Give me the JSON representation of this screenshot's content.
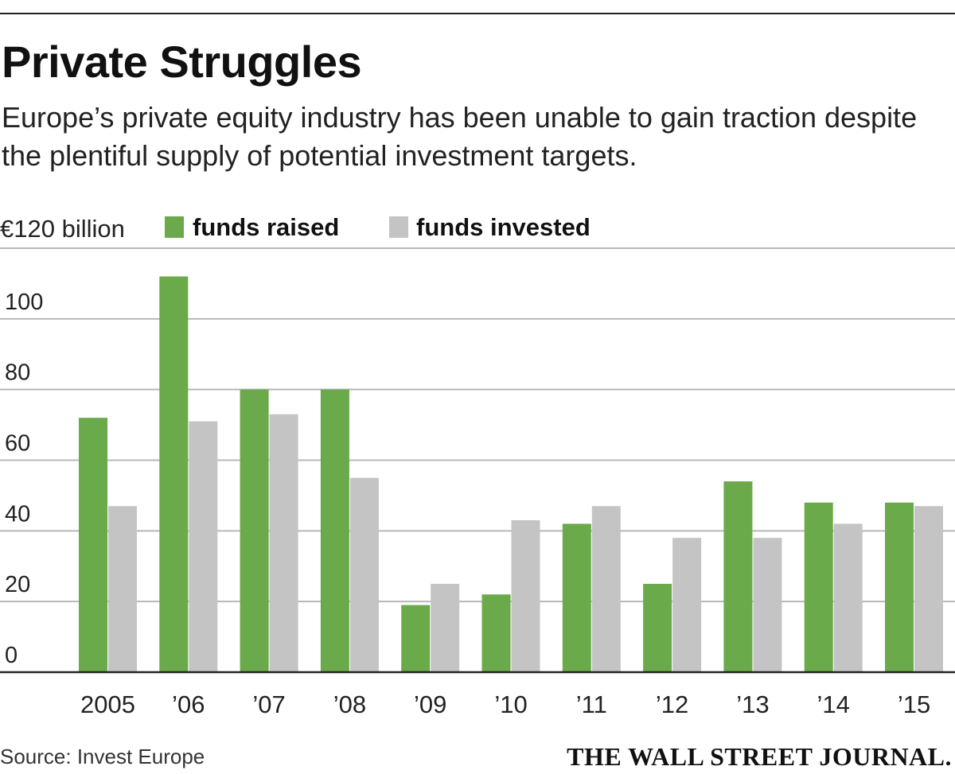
{
  "header": {
    "title": "Private Struggles",
    "subtitle": "Europe’s private equity industry has been unable to gain traction despite the plentiful supply of potential investment targets."
  },
  "chart_data": {
    "type": "bar",
    "title": "Private Struggles",
    "ylabel": "€120 billion",
    "xlabel": "",
    "ylim": [
      0,
      120
    ],
    "yticks": [
      0,
      20,
      40,
      60,
      80,
      100
    ],
    "grid": true,
    "legend_position": "top-left",
    "categories": [
      "2005",
      "’06",
      "’07",
      "’08",
      "’09",
      "’10",
      "’11",
      "’12",
      "’13",
      "’14",
      "’15"
    ],
    "series": [
      {
        "name": "funds raised",
        "color": "#6aaa4a",
        "values": [
          72,
          112,
          80,
          80,
          19,
          22,
          42,
          25,
          54,
          48,
          48
        ]
      },
      {
        "name": "funds invested",
        "color": "#c4c4c4",
        "values": [
          47,
          71,
          73,
          55,
          25,
          43,
          47,
          38,
          38,
          42,
          47
        ]
      }
    ]
  },
  "footer": {
    "source": "Source: Invest Europe",
    "brand": "THE WALL STREET JOURNAL."
  }
}
